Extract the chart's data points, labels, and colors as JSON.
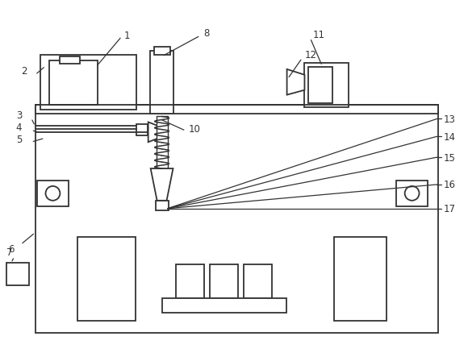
{
  "bg_color": "#ffffff",
  "line_color": "#333333",
  "line_width": 1.3,
  "fig_width": 5.8,
  "fig_height": 4.39,
  "dpi": 100
}
